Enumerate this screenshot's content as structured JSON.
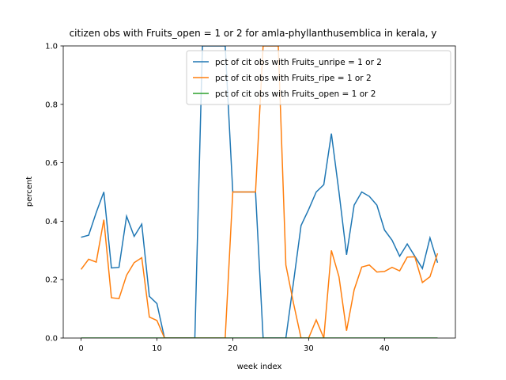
{
  "chart_data": {
    "type": "line",
    "title": "citizen obs with Fruits_open = 1 or 2 for amla-phyllanthusemblica in kerala, y",
    "xlabel": "week index",
    "ylabel": "percent",
    "x": [
      0,
      1,
      2,
      3,
      4,
      5,
      6,
      7,
      8,
      9,
      10,
      11,
      12,
      13,
      14,
      15,
      16,
      17,
      18,
      19,
      20,
      21,
      22,
      23,
      24,
      25,
      26,
      27,
      28,
      29,
      30,
      31,
      32,
      33,
      34,
      35,
      36,
      37,
      38,
      39,
      40,
      41,
      42,
      43,
      44,
      45,
      46,
      47
    ],
    "series": [
      {
        "name": "pct of cit obs with Fruits_unripe = 1 or 2",
        "color": "#1f77b4",
        "values": [
          0.345,
          0.352,
          0.43,
          0.5,
          0.24,
          0.242,
          0.417,
          0.348,
          0.39,
          0.143,
          0.118,
          0,
          0,
          0,
          0,
          0,
          1.0,
          1.0,
          1.0,
          1.0,
          0.5,
          0.5,
          0.5,
          0.5,
          0,
          0,
          0,
          0,
          0.19,
          0.385,
          0.44,
          0.5,
          0.525,
          0.7,
          0.5,
          0.285,
          0.455,
          0.5,
          0.485,
          0.455,
          0.37,
          0.335,
          0.28,
          0.322,
          0.28,
          0.238,
          0.343,
          0.258
        ]
      },
      {
        "name": "pct of cit obs with Fruits_ripe = 1 or 2",
        "color": "#ff7f0e",
        "values": [
          0.235,
          0.27,
          0.26,
          0.405,
          0.138,
          0.135,
          0.215,
          0.258,
          0.275,
          0.072,
          0.06,
          0,
          0,
          0,
          0,
          0,
          0,
          0,
          0,
          0,
          0.5,
          0.5,
          0.5,
          0.5,
          1.0,
          1.0,
          1.0,
          0.25,
          0.12,
          0,
          0,
          0.062,
          0,
          0.3,
          0.21,
          0.025,
          0.165,
          0.243,
          0.25,
          0.226,
          0.228,
          0.242,
          0.23,
          0.277,
          0.278,
          0.19,
          0.21,
          0.29
        ]
      },
      {
        "name": "pct of cit obs with Fruits_open = 1 or 2",
        "color": "#2ca02c",
        "values": [
          0,
          0,
          0,
          0,
          0,
          0,
          0,
          0,
          0,
          0,
          0,
          0,
          0,
          0,
          0,
          0,
          0,
          0,
          0,
          0,
          0,
          0,
          0,
          0,
          0,
          0,
          0,
          0,
          0,
          0,
          0,
          0,
          0,
          0,
          0,
          0,
          0,
          0,
          0,
          0,
          0,
          0,
          0,
          0,
          0,
          0,
          0,
          0
        ]
      }
    ],
    "xlim": [
      -2.35,
      49.35
    ],
    "xticks": [
      0,
      10,
      20,
      30,
      40
    ],
    "ylim": [
      0,
      1
    ],
    "yticks": [
      {
        "value": 0,
        "label": "0.0"
      },
      0.2,
      0.4,
      0.6,
      0.8,
      {
        "value": 1,
        "label": "1.0"
      }
    ],
    "legend": "upper right"
  }
}
